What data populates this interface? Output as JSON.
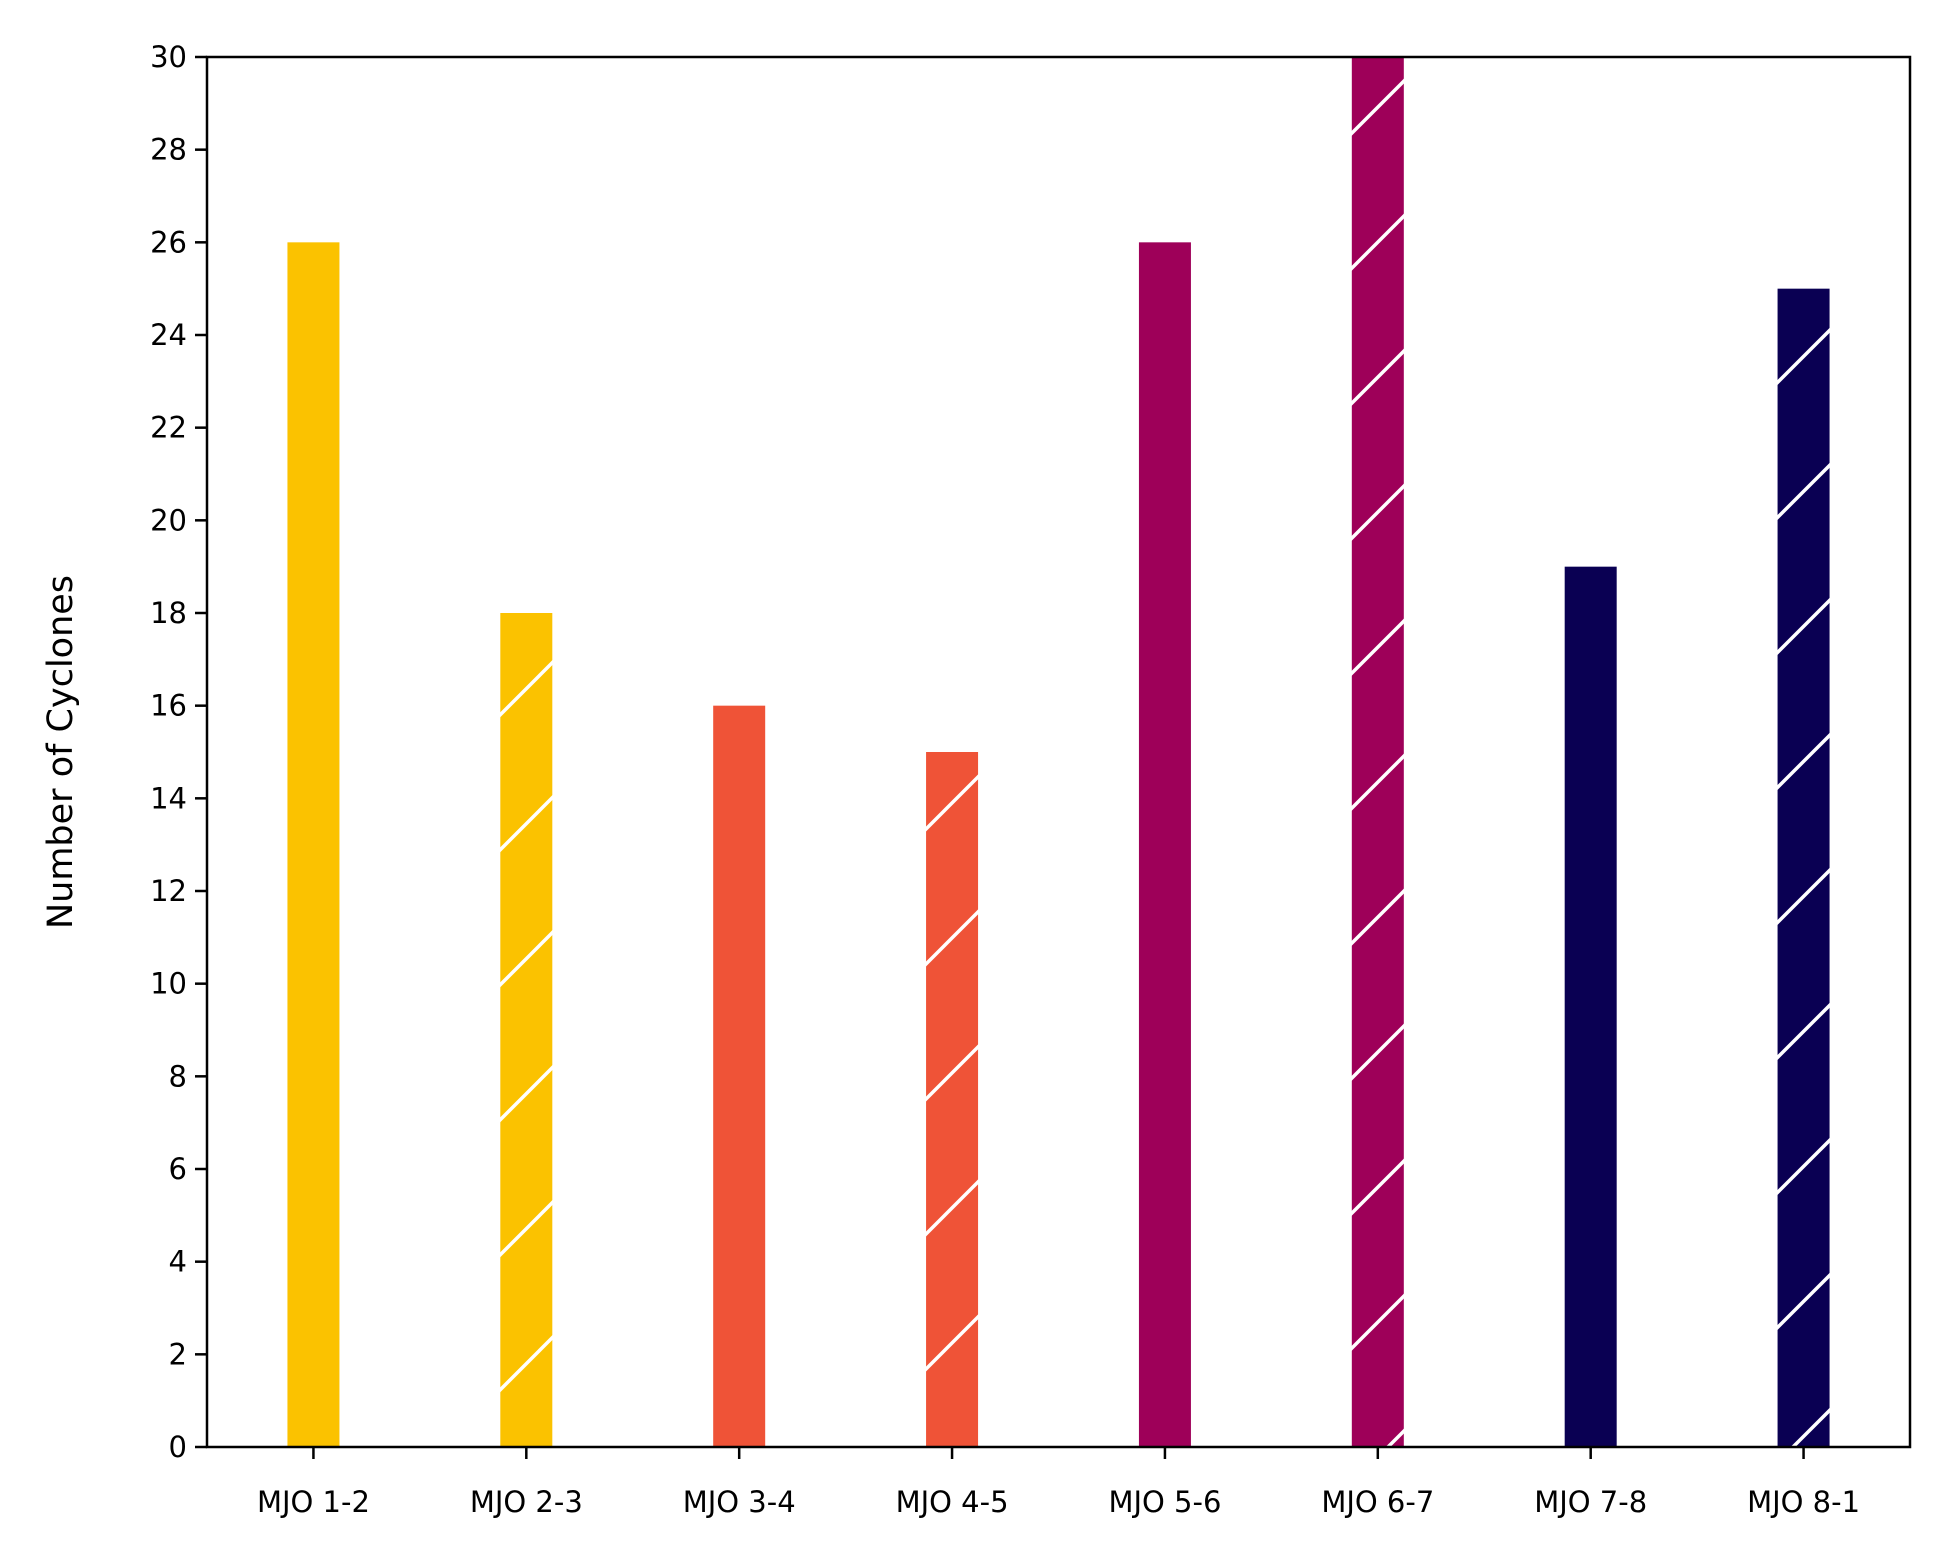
{
  "chart_data": {
    "type": "bar",
    "title": "",
    "xlabel": "",
    "ylabel": "Number of Cyclones",
    "ylim": [
      0,
      30
    ],
    "yticks": [
      0,
      2,
      4,
      6,
      8,
      10,
      12,
      14,
      16,
      18,
      20,
      22,
      24,
      26,
      28,
      30
    ],
    "grid": false,
    "legend": "none",
    "categories": [
      "MJO 1-2",
      "MJO 2-3",
      "MJO 3-4",
      "MJO 4-5",
      "MJO 5-6",
      "MJO 6-7",
      "MJO 7-8",
      "MJO 8-1"
    ],
    "values": [
      26,
      18,
      16,
      15,
      26,
      30,
      19,
      25
    ],
    "bar_colors": [
      "#fbc200",
      "#fbc200",
      "#ef5337",
      "#ef5337",
      "#9e0059",
      "#9e0059",
      "#0a0053",
      "#0a0053"
    ],
    "hatched": [
      false,
      true,
      false,
      true,
      false,
      true,
      false,
      true
    ],
    "hatch_color": "#ffffff"
  }
}
